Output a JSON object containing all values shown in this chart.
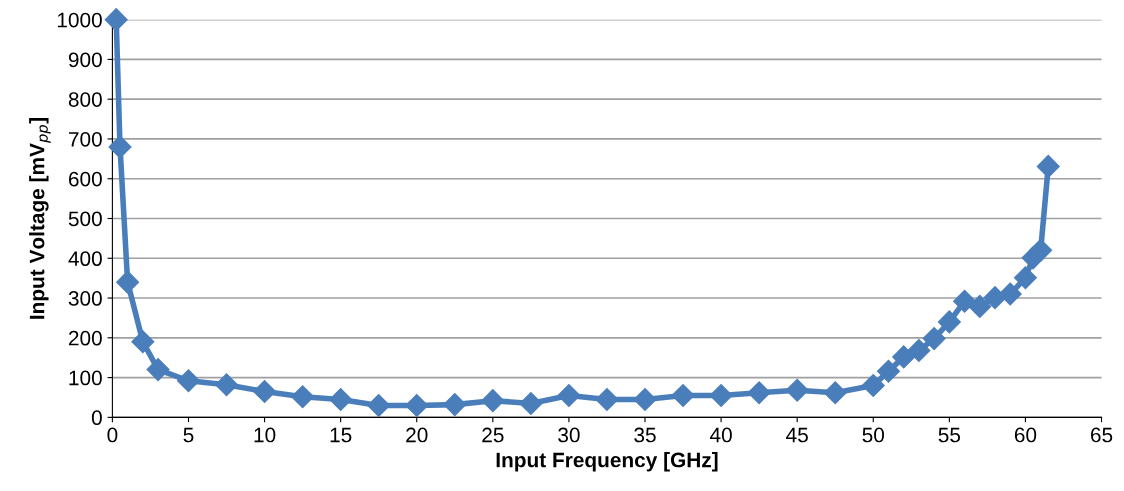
{
  "chart_data": {
    "type": "line",
    "xlabel": "Input Frequency [GHz]",
    "ylabel": "Input Voltage [mV$_{pp}$]",
    "x": [
      0.25,
      0.5,
      1,
      2,
      3,
      5,
      7.5,
      10,
      12.5,
      15,
      17.5,
      20,
      22.5,
      25,
      27.5,
      30,
      32.5,
      35,
      37.5,
      40,
      42.5,
      45,
      47.5,
      50,
      51,
      52,
      53,
      54,
      55,
      56,
      57,
      58,
      59,
      60,
      60.5,
      61,
      61.5
    ],
    "series": [
      {
        "color": "#4a7ebb",
        "values": [
          1000,
          680,
          340,
          190,
          120,
          92,
          82,
          65,
          52,
          45,
          30,
          30,
          32,
          42,
          35,
          55,
          45,
          45,
          55,
          55,
          62,
          68,
          62,
          80,
          116,
          152,
          168,
          198,
          240,
          292,
          279,
          301,
          310,
          351,
          401,
          420,
          631
        ]
      }
    ],
    "xlim": [
      0,
      65
    ],
    "xticks": [
      0,
      5,
      10,
      15,
      20,
      25,
      30,
      35,
      40,
      45,
      50,
      55,
      60,
      65
    ],
    "ylim": [
      0,
      1000
    ],
    "yticks": [
      0,
      100,
      200,
      300,
      400,
      500,
      600,
      700,
      800,
      900,
      1000
    ],
    "grid": "y",
    "marker": "diamond",
    "line_style": "solid",
    "legend": false
  }
}
